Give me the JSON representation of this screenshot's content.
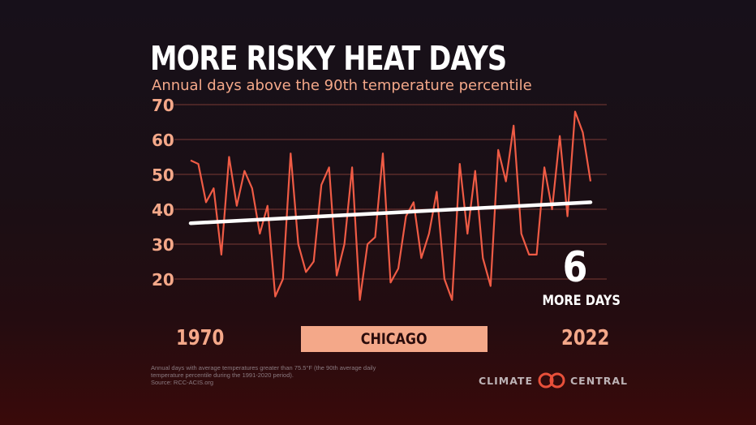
{
  "title": "MORE RISKY HEAT DAYS",
  "subtitle": "Annual days above the 90th temperature percentile",
  "callout": {
    "value": "6",
    "label": "MORE DAYS"
  },
  "location": "CHICAGO",
  "footnote": {
    "line1": "Annual days with average temperatures greater than 75.5°F (the 90th average daily",
    "line2": "temperature percentile during the 1991-2020 period).",
    "line3": "Source: RCC-ACIS.org"
  },
  "brand": {
    "left": "CLIMATE",
    "right": "CENTRAL",
    "logo_icon": "climate-central-logo"
  },
  "colors": {
    "line": "#ef5b45",
    "accent": "#f4a889",
    "trend": "#ffffff",
    "grid": "#7a3a35"
  },
  "chart_data": {
    "type": "line",
    "title": "MORE RISKY HEAT DAYS",
    "subtitle": "Annual days above the 90th temperature percentile",
    "xlabel": "",
    "ylabel": "",
    "x_start_label": "1970",
    "x_end_label": "2022",
    "xlim": [
      1970,
      2022
    ],
    "ylim": [
      10,
      70
    ],
    "yticks": [
      20,
      30,
      40,
      50,
      60,
      70
    ],
    "grid": true,
    "x": [
      1970,
      1971,
      1972,
      1973,
      1974,
      1975,
      1976,
      1977,
      1978,
      1979,
      1980,
      1981,
      1982,
      1983,
      1984,
      1985,
      1986,
      1987,
      1988,
      1989,
      1990,
      1991,
      1992,
      1993,
      1994,
      1995,
      1996,
      1997,
      1998,
      1999,
      2000,
      2001,
      2002,
      2003,
      2004,
      2005,
      2006,
      2007,
      2008,
      2009,
      2010,
      2011,
      2012,
      2013,
      2014,
      2015,
      2016,
      2017,
      2018,
      2019,
      2020,
      2021,
      2022
    ],
    "series": [
      {
        "values": [
          54,
          53,
          42,
          46,
          27,
          55,
          41,
          51,
          46,
          33,
          41,
          15,
          20,
          56,
          30,
          22,
          25,
          47,
          52,
          21,
          30,
          52,
          14,
          30,
          32,
          56,
          19,
          23,
          38,
          42,
          26,
          33,
          45,
          20,
          14,
          53,
          33,
          51,
          26,
          18,
          57,
          48,
          64,
          33,
          27,
          27,
          52,
          40,
          61,
          38,
          68,
          62,
          48
        ]
      }
    ],
    "trend": {
      "start": 36,
      "end": 42
    }
  }
}
